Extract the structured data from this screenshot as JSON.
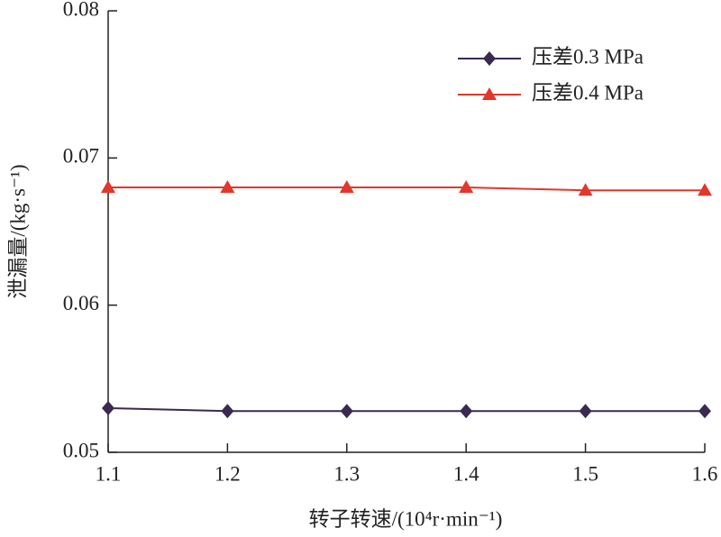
{
  "chart_data": {
    "type": "line",
    "x_label": "转子转速/(10⁴r·min⁻¹)",
    "y_label": "泄漏量/(kg·s⁻¹)",
    "x": [
      1.1,
      1.2,
      1.3,
      1.4,
      1.5,
      1.6
    ],
    "series": [
      {
        "name": "压差0.3 MPa",
        "color": "#3b2a4f",
        "marker": "diamond",
        "values": [
          0.053,
          0.0528,
          0.0528,
          0.0528,
          0.0528,
          0.0528
        ]
      },
      {
        "name": "压差0.4 MPa",
        "color": "#e2372b",
        "marker": "triangle",
        "values": [
          0.068,
          0.068,
          0.068,
          0.068,
          0.0678,
          0.0678
        ]
      }
    ],
    "xlim": [
      1.1,
      1.6
    ],
    "xticks": [
      1.1,
      1.2,
      1.3,
      1.4,
      1.5,
      1.6
    ],
    "ylim": [
      0.05,
      0.08
    ],
    "yticks": [
      0.05,
      0.06,
      0.07,
      0.08
    ],
    "grid": false,
    "legend": "upper right"
  }
}
